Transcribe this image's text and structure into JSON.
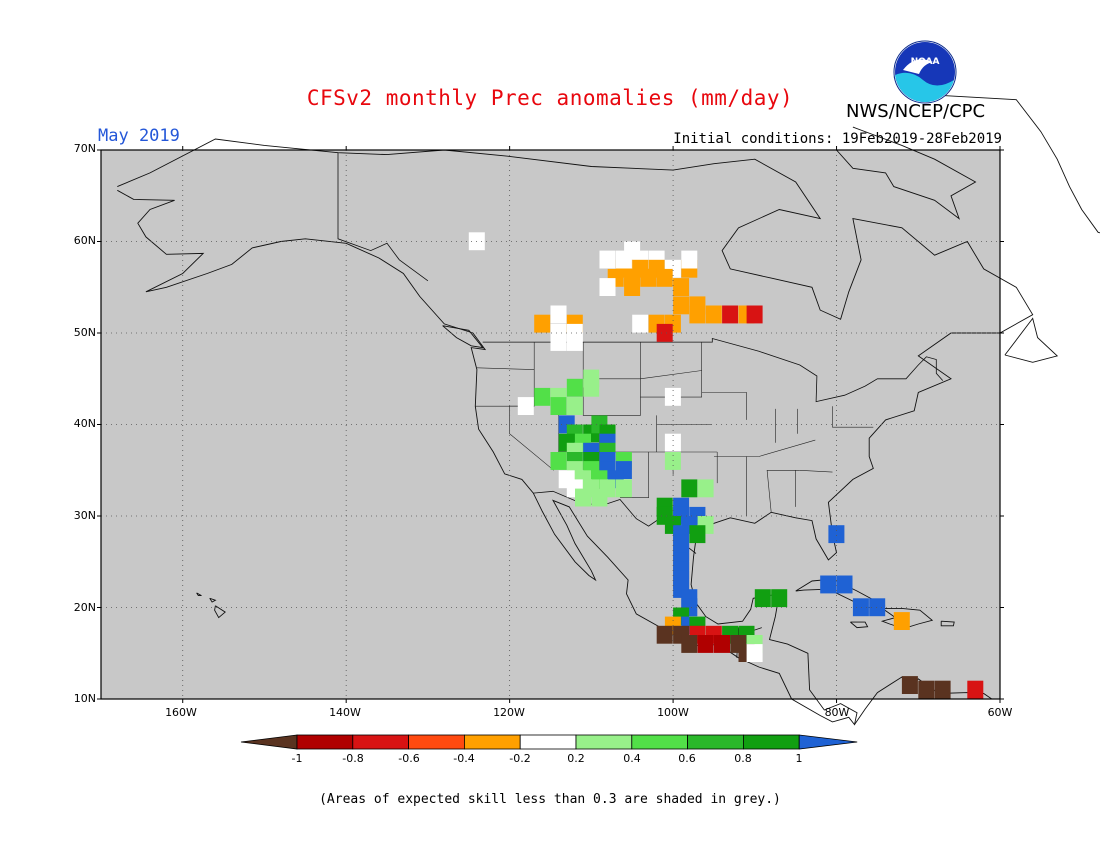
{
  "header": {
    "title": "CFSv2 monthly Prec anomalies (mm/day)",
    "month": "May 2019",
    "initial_conditions": "Initial conditions: 19Feb2019-28Feb2019",
    "agency": "NWS/NCEP/CPC",
    "logo_text": "NOAA"
  },
  "axes": {
    "lat_labels": [
      "70N",
      "60N",
      "50N",
      "40N",
      "30N",
      "20N",
      "10N"
    ],
    "lon_labels": [
      "160W",
      "140W",
      "120W",
      "100W",
      "80W",
      "60W"
    ]
  },
  "colorbar": {
    "tick_labels": [
      "-1",
      "-0.8",
      "-0.6",
      "-0.4",
      "-0.2",
      "0.2",
      "0.4",
      "0.6",
      "0.8",
      "1"
    ],
    "colors": [
      "#5a3320",
      "#b00000",
      "#d81313",
      "#ff4a10",
      "#ffa000",
      "#ffffff",
      "#98f08a",
      "#52e048",
      "#2ab82a",
      "#119f11",
      "#1f62d4"
    ]
  },
  "map_data": {
    "projection": "cylindrical equidistant",
    "lon_range": [
      -170,
      -60
    ],
    "lat_range": [
      10,
      70
    ],
    "background_color": "#c8c8c8",
    "regions": [
      {
        "name": "Hudson Bay area",
        "category": "-0.4 to -0.2",
        "color": "#ffa000"
      },
      {
        "name": "Four Corners / Southwest US",
        "category": "0.4 to 1",
        "color": "#52e048"
      },
      {
        "name": "Gulf coast Mexico / South Texas",
        "category": ">1",
        "color": "#1f62d4"
      },
      {
        "name": "Southern Mexico Pacific coast",
        "category": "<-1",
        "color": "#5a3320"
      },
      {
        "name": "Florida",
        "category": ">1",
        "color": "#1f62d4"
      },
      {
        "name": "Cuba",
        "category": ">1",
        "color": "#1f62d4"
      },
      {
        "name": "Northern Venezuela coast",
        "category": "<-1",
        "color": "#5a3320"
      }
    ]
  },
  "footnote": "(Areas of expected skill less than 0.3 are shaded in grey.)"
}
